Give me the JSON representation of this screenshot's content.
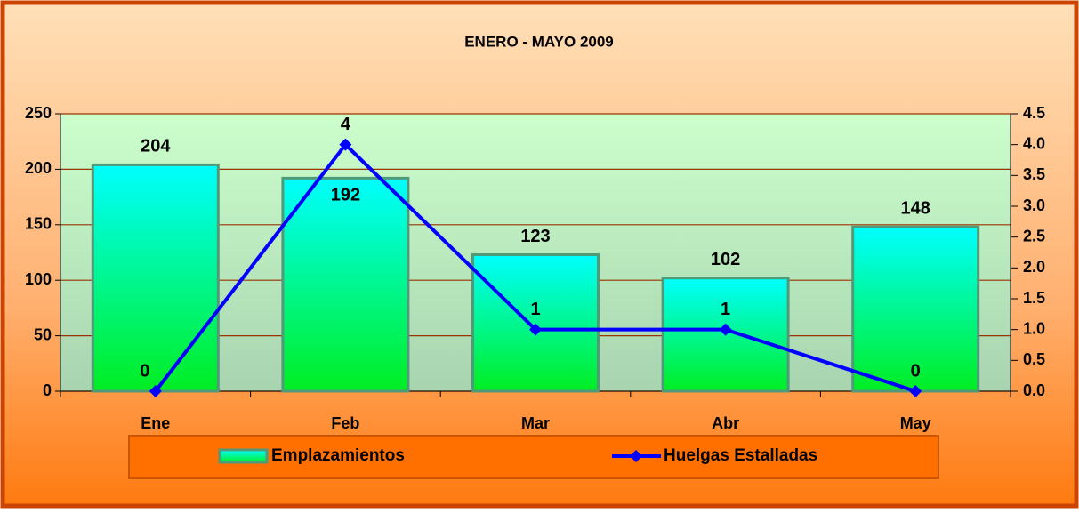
{
  "chart_data": {
    "type": "bar-line",
    "title": "ENERO - MAYO 2009",
    "categories": [
      "Ene",
      "Feb",
      "Mar",
      "Abr",
      "May"
    ],
    "series": [
      {
        "name": "Emplazamientos",
        "type": "bar",
        "color": "#00ffff",
        "values": [
          204,
          192,
          123,
          102,
          148
        ]
      },
      {
        "name": "Huelgas Estalladas",
        "type": "line",
        "axis": "y2",
        "color": "#0000ff",
        "values": [
          0,
          4,
          1,
          1,
          0
        ]
      }
    ],
    "ylim": [
      0,
      250
    ],
    "yticks": [
      0,
      50,
      100,
      150,
      200,
      250
    ],
    "y2lim": [
      0,
      4.5
    ],
    "y2ticks": [
      {
        "value": 0,
        "label": "0.0"
      },
      0.5,
      {
        "value": 1,
        "label": "1.0"
      },
      1.5,
      {
        "value": 2,
        "label": "2.0"
      },
      2.5,
      {
        "value": 3,
        "label": "3.0"
      },
      3.5,
      {
        "value": 4,
        "label": "4.0"
      },
      4.5
    ],
    "grid": true,
    "legend": "bottom"
  }
}
